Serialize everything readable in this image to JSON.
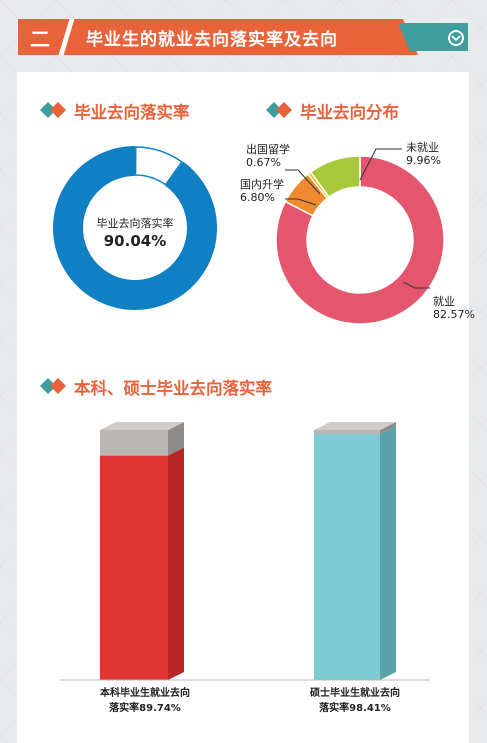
{
  "header": {
    "number": "二",
    "title": "毕业生的就业去向落实率及去向"
  },
  "colors": {
    "orange": "#e8633a",
    "teal": "#3e9e9e",
    "blue": "#1080c4",
    "pink": "#e5566e",
    "red": "#e03532",
    "cyan": "#7ecbd3",
    "green": "#a8c83a",
    "yellow": "#f0c419",
    "lightorange": "#f08a30",
    "gray": "#b9b6b3"
  },
  "sections": {
    "rate_title": "毕业去向落实率",
    "dist_title": "毕业去向分布",
    "degree_title": "本科、硕士毕业去向落实率"
  },
  "chart_data": [
    {
      "type": "pie",
      "title": "毕业去向落实率",
      "center_label": "毕业去向落实率",
      "center_value": "90.04%",
      "values": [
        90.04,
        9.96
      ]
    },
    {
      "type": "pie",
      "title": "毕业去向分布",
      "slices": [
        {
          "name": "就业",
          "value": 82.57,
          "label": "82.57%"
        },
        {
          "name": "国内升学",
          "value": 6.8,
          "label": "6.80%"
        },
        {
          "name": "出国留学",
          "value": 0.67,
          "label": "0.67%"
        },
        {
          "name": "未就业",
          "value": 9.96,
          "label": "9.96%"
        }
      ]
    },
    {
      "type": "bar",
      "title": "本科、硕士毕业去向落实率",
      "categories": [
        "本科毕业生就业去向落实率89.74%",
        "硕士毕业生就业去向落实率98.41%"
      ],
      "category_lines": [
        [
          "本科毕业生就业去向",
          "落实率89.74%"
        ],
        [
          "硕士毕业生就业去向",
          "落实率98.41%"
        ]
      ],
      "values": [
        89.74,
        98.41
      ],
      "ylim": [
        0,
        100
      ]
    }
  ]
}
